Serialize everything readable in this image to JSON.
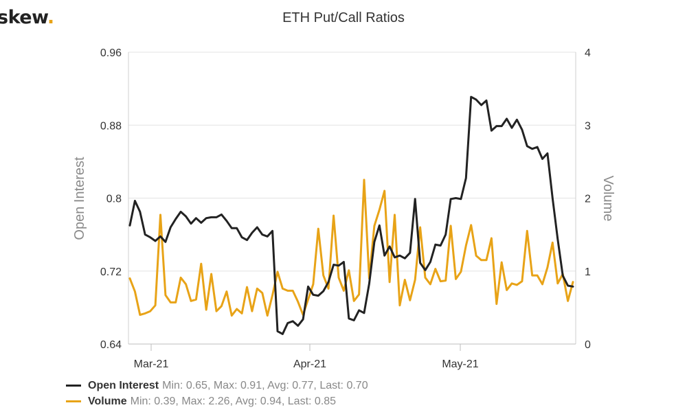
{
  "logo": {
    "text": "skew",
    "dot": ".",
    "color": "#e8a317"
  },
  "chart_data": {
    "type": "line",
    "title": "ETH Put/Call Ratios",
    "x_tick_labels": [
      "Mar-21",
      "Apr-21",
      "May-21"
    ],
    "ylabel_left": "Open Interest",
    "ylabel_right": "Volume",
    "y_left": {
      "ticks": [
        "0.64",
        "0.72",
        "0.8",
        "0.88",
        "0.96"
      ],
      "range": [
        0.64,
        0.96
      ]
    },
    "y_right": {
      "ticks": [
        "0",
        "1",
        "2",
        "3",
        "4"
      ],
      "range": [
        0,
        4
      ]
    },
    "grid": "horizontal",
    "legend_position": "bottom-left",
    "series": [
      {
        "name": "Open Interest",
        "axis": "left",
        "color": "#222222",
        "stats": "Min: 0.65, Max: 0.91, Avg: 0.77, Last: 0.70",
        "values": [
          0.77,
          0.797,
          0.785,
          0.76,
          0.757,
          0.753,
          0.758,
          0.752,
          0.768,
          0.777,
          0.785,
          0.78,
          0.772,
          0.778,
          0.773,
          0.778,
          0.779,
          0.779,
          0.782,
          0.775,
          0.767,
          0.767,
          0.757,
          0.754,
          0.762,
          0.768,
          0.76,
          0.758,
          0.764,
          0.654,
          0.651,
          0.663,
          0.665,
          0.66,
          0.667,
          0.703,
          0.694,
          0.693,
          0.698,
          0.708,
          0.727,
          0.726,
          0.73,
          0.668,
          0.666,
          0.677,
          0.674,
          0.706,
          0.752,
          0.77,
          0.737,
          0.747,
          0.735,
          0.737,
          0.734,
          0.74,
          0.799,
          0.729,
          0.721,
          0.73,
          0.749,
          0.748,
          0.76,
          0.799,
          0.8,
          0.799,
          0.822,
          0.911,
          0.908,
          0.902,
          0.907,
          0.874,
          0.879,
          0.879,
          0.887,
          0.877,
          0.886,
          0.875,
          0.857,
          0.854,
          0.856,
          0.843,
          0.849,
          0.8,
          0.755,
          0.715,
          0.704,
          0.703
        ],
        "dates": [
          "Feb-26",
          "Feb-27",
          "Feb-28",
          "Mar-01",
          "Mar-02",
          "Mar-03",
          "Mar-04",
          "Mar-05",
          "Mar-06",
          "Mar-07",
          "Mar-08",
          "Mar-09",
          "Mar-10",
          "Mar-11",
          "Mar-12",
          "Mar-13",
          "Mar-14",
          "Mar-15",
          "Mar-16",
          "Mar-17",
          "Mar-18",
          "Mar-19",
          "Mar-20",
          "Mar-21",
          "Mar-22",
          "Mar-23",
          "Mar-24",
          "Mar-25",
          "Mar-26",
          "Mar-27",
          "Mar-28",
          "Mar-29",
          "Mar-30",
          "Mar-31",
          "Apr-01",
          "Apr-02",
          "Apr-03",
          "Apr-04",
          "Apr-05",
          "Apr-06",
          "Apr-07",
          "Apr-08",
          "Apr-09",
          "Apr-10",
          "Apr-11",
          "Apr-12",
          "Apr-13",
          "Apr-14",
          "Apr-15",
          "Apr-16",
          "Apr-17",
          "Apr-18",
          "Apr-19",
          "Apr-20",
          "Apr-21",
          "Apr-22",
          "Apr-23",
          "Apr-24",
          "Apr-25",
          "Apr-26",
          "Apr-27",
          "Apr-28",
          "Apr-29",
          "Apr-30",
          "May-01",
          "May-02",
          "May-03",
          "May-04",
          "May-05",
          "May-06",
          "May-07",
          "May-08",
          "May-09",
          "May-10",
          "May-11",
          "May-12",
          "May-13",
          "May-14",
          "May-15",
          "May-16",
          "May-17",
          "May-18",
          "May-19",
          "May-20",
          "May-21",
          "May-22",
          "May-23",
          "May-24"
        ]
      },
      {
        "name": "Volume",
        "axis": "right",
        "color": "#e8a317",
        "stats": "Min: 0.39, Max: 2.26, Avg: 0.94, Last: 0.85",
        "values": [
          0.9,
          0.72,
          0.4,
          0.42,
          0.45,
          0.53,
          1.77,
          0.67,
          0.57,
          0.57,
          0.91,
          0.82,
          0.59,
          0.61,
          1.1,
          0.47,
          0.96,
          0.45,
          0.52,
          0.72,
          0.39,
          0.48,
          0.42,
          0.78,
          0.45,
          0.76,
          0.7,
          0.39,
          0.67,
          0.99,
          0.76,
          0.73,
          0.73,
          0.58,
          0.4,
          0.61,
          0.82,
          1.58,
          0.94,
          0.76,
          1.76,
          0.91,
          0.73,
          1.01,
          0.59,
          0.68,
          2.25,
          0.9,
          1.62,
          1.84,
          2.1,
          0.85,
          1.77,
          0.53,
          0.88,
          0.6,
          0.88,
          1.6,
          0.91,
          0.82,
          1.03,
          0.86,
          0.87,
          1.62,
          0.89,
          0.99,
          1.35,
          1.63,
          1.21,
          1.15,
          1.15,
          1.45,
          0.55,
          1.12,
          0.74,
          0.83,
          0.81,
          0.86,
          1.55,
          0.94,
          0.94,
          0.82,
          1.05,
          1.39,
          0.83,
          0.96,
          0.59,
          0.85
        ],
        "dates": [
          "Feb-26",
          "Feb-27",
          "Feb-28",
          "Mar-01",
          "Mar-02",
          "Mar-03",
          "Mar-04",
          "Mar-05",
          "Mar-06",
          "Mar-07",
          "Mar-08",
          "Mar-09",
          "Mar-10",
          "Mar-11",
          "Mar-12",
          "Mar-13",
          "Mar-14",
          "Mar-15",
          "Mar-16",
          "Mar-17",
          "Mar-18",
          "Mar-19",
          "Mar-20",
          "Mar-21",
          "Mar-22",
          "Mar-23",
          "Mar-24",
          "Mar-25",
          "Mar-26",
          "Mar-27",
          "Mar-28",
          "Mar-29",
          "Mar-30",
          "Mar-31",
          "Apr-01",
          "Apr-02",
          "Apr-03",
          "Apr-04",
          "Apr-05",
          "Apr-06",
          "Apr-07",
          "Apr-08",
          "Apr-09",
          "Apr-10",
          "Apr-11",
          "Apr-12",
          "Apr-13",
          "Apr-14",
          "Apr-15",
          "Apr-16",
          "Apr-17",
          "Apr-18",
          "Apr-19",
          "Apr-20",
          "Apr-21",
          "Apr-22",
          "Apr-23",
          "Apr-24",
          "Apr-25",
          "Apr-26",
          "Apr-27",
          "Apr-28",
          "Apr-29",
          "Apr-30",
          "May-01",
          "May-02",
          "May-03",
          "May-04",
          "May-05",
          "May-06",
          "May-07",
          "May-08",
          "May-09",
          "May-10",
          "May-11",
          "May-12",
          "May-13",
          "May-14",
          "May-15",
          "May-16",
          "May-17",
          "May-18",
          "May-19",
          "May-20",
          "May-21",
          "May-22",
          "May-23",
          "May-24"
        ]
      }
    ]
  }
}
